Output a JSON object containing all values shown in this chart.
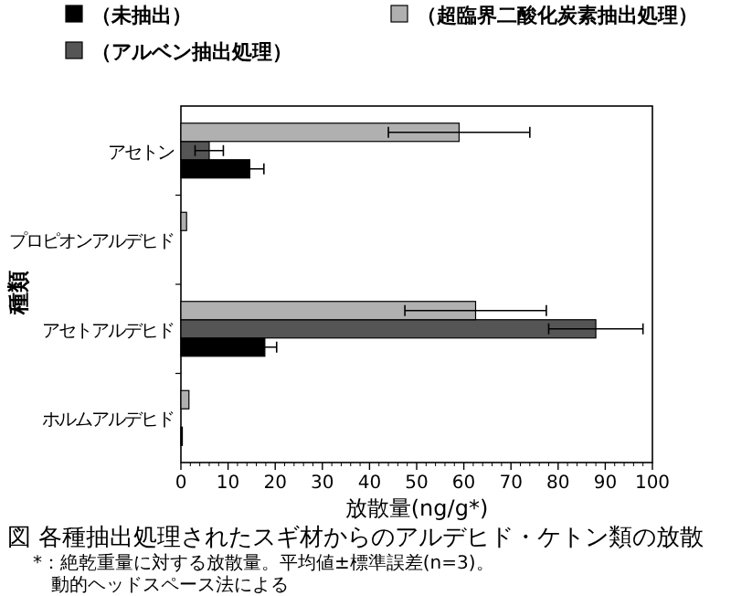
{
  "chart_data": {
    "type": "bar",
    "orientation": "horizontal",
    "title": "図 各種抽出処理されたスギ材からのアルデヒド・ケトン類の放散",
    "xlabel": "放散量(ng/g*)",
    "ylabel": "種類",
    "categories": [
      "アセトン",
      "プロピオンアルデヒド",
      "アセトアルデヒド",
      "ホルムアルデヒド"
    ],
    "series": [
      {
        "name": "（未抽出）",
        "color": "#000000",
        "values": [
          14.6,
          null,
          17.8,
          0.3
        ],
        "errors": [
          3,
          null,
          2.5,
          null
        ]
      },
      {
        "name": "（アルベン抽出処理）",
        "color": "#555555",
        "values": [
          6,
          null,
          88,
          null
        ],
        "errors": [
          3,
          null,
          10,
          null
        ]
      },
      {
        "name": "（超臨界二酸化炭素抽出処理）",
        "color": "#b0b0b0",
        "values": [
          59,
          1.2,
          62.5,
          1.7
        ],
        "errors": [
          15,
          null,
          15,
          null
        ]
      }
    ],
    "xlim": [
      0,
      100
    ],
    "xticks": [
      0,
      10,
      20,
      30,
      40,
      50,
      60,
      70,
      80,
      90,
      100
    ],
    "legend": "top",
    "annotations": [
      "*：絶乾重量に対する放散量。平均値±標準誤差(n=3)。",
      "動的ヘッドスペース法による"
    ]
  }
}
